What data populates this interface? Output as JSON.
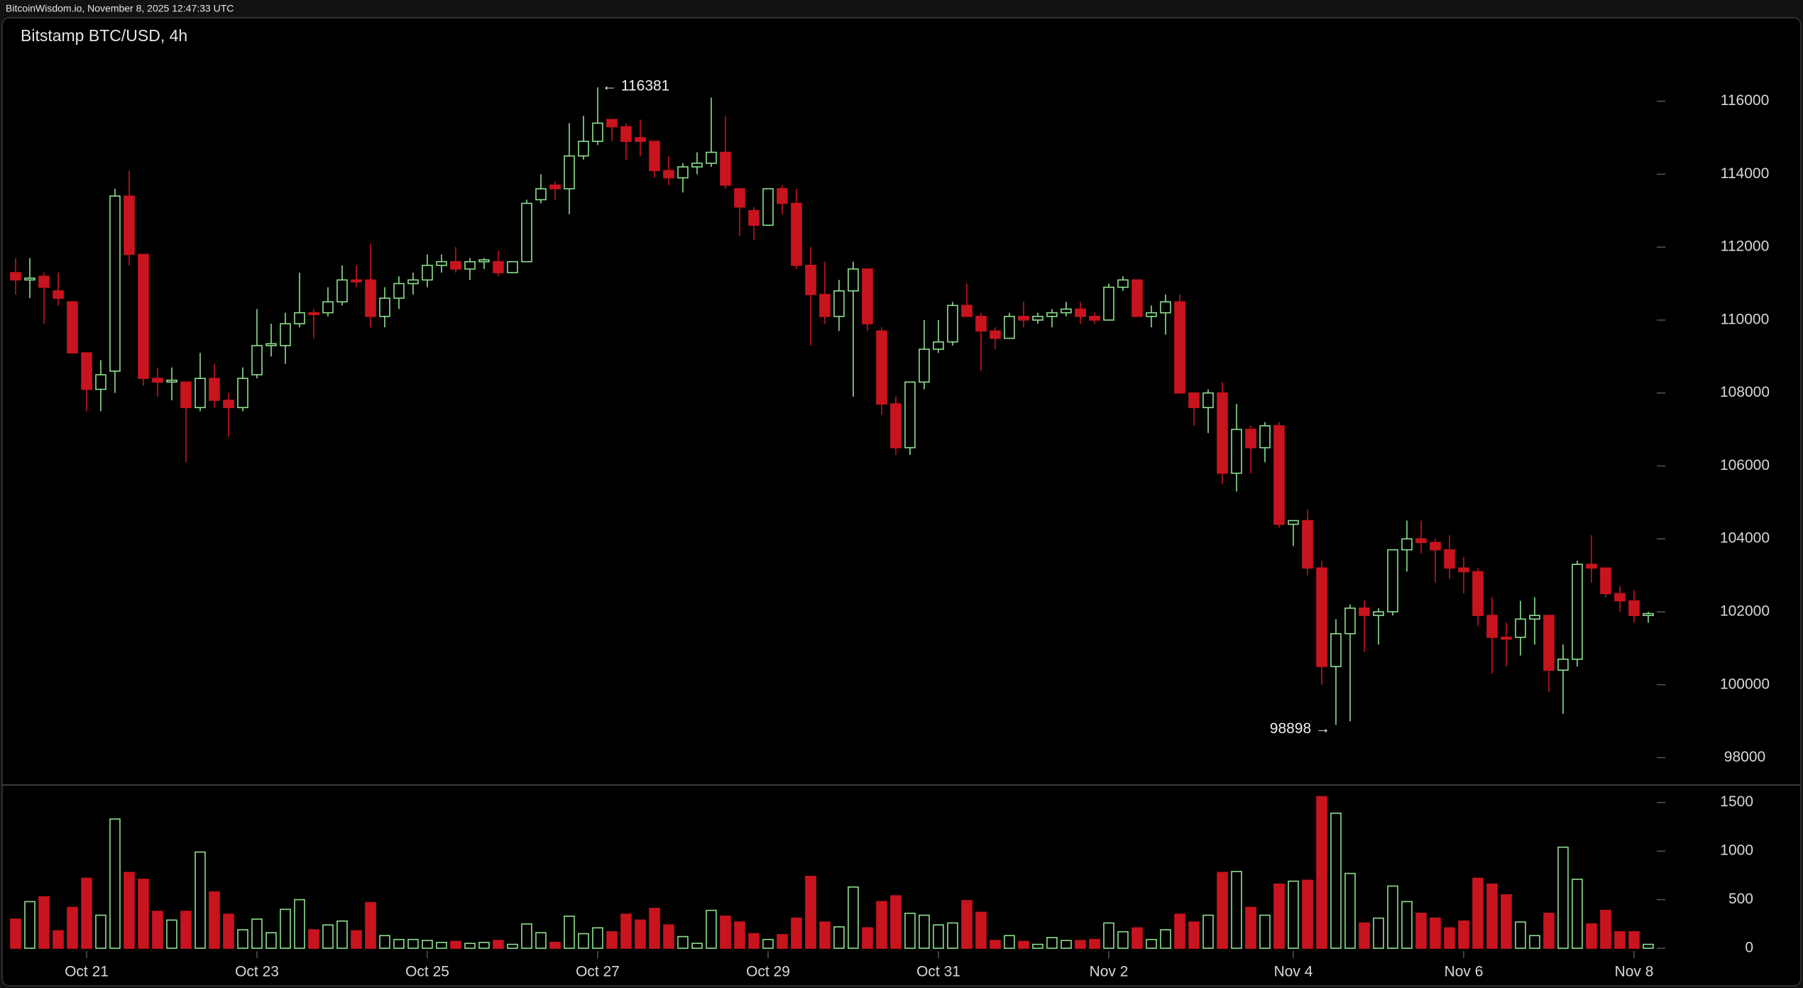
{
  "chart_data": {
    "type": "candlestick",
    "header": "BitcoinWisdom.io, November 8, 2025 12:47:33 UTC",
    "title": "Bitstamp BTC/USD, 4h",
    "up_color": "#8fe08f",
    "down_color": "#c8141e",
    "open": [
      111300,
      111100,
      111200,
      110800,
      110500,
      109100,
      108100,
      108600,
      113400,
      111800,
      108400,
      108300,
      108300,
      107600,
      108400,
      107800,
      107600,
      108500,
      109300,
      109300,
      109900,
      110200,
      110200,
      110500,
      111100,
      111100,
      110100,
      110600,
      111000,
      111100,
      111500,
      111600,
      111400,
      111600,
      111600,
      111300,
      111600,
      113300,
      113700,
      113600,
      114500,
      114900,
      115500,
      115300,
      115000,
      114900,
      114100,
      113900,
      114200,
      114300,
      114600,
      113600,
      113000,
      112600,
      113600,
      113200,
      111500,
      110700,
      110100,
      110800,
      111400,
      109700,
      107700,
      106500,
      108300,
      109200,
      109400,
      110400,
      110100,
      109700,
      109500,
      110100,
      110000,
      110100,
      110200,
      110300,
      110100,
      110000,
      110900,
      111100,
      110100,
      110200,
      110500,
      108000,
      107600,
      108000,
      105800,
      107000,
      106500,
      107100,
      104400,
      104500,
      103200,
      100500,
      101400,
      102100,
      101900,
      102000,
      103700,
      104000,
      103900,
      103700,
      103200,
      103100,
      101900,
      101300,
      101300,
      101800,
      101900,
      100400,
      100700,
      103300,
      103200,
      102500,
      102300,
      101900
    ],
    "high": [
      111700,
      111700,
      111300,
      111300,
      110500,
      109100,
      108900,
      113600,
      114100,
      111800,
      108700,
      108700,
      108300,
      109100,
      108800,
      108000,
      108700,
      110300,
      109900,
      110200,
      111300,
      110300,
      110900,
      111500,
      111500,
      112100,
      110900,
      111200,
      111300,
      111800,
      111800,
      112000,
      111700,
      111700,
      111900,
      111600,
      113300,
      114000,
      113800,
      115400,
      115600,
      116381,
      115500,
      115400,
      115500,
      114900,
      114500,
      114300,
      114600,
      116100,
      115600,
      113600,
      113100,
      113600,
      113700,
      113600,
      112000,
      111600,
      111100,
      111600,
      111400,
      109800,
      107900,
      108300,
      110000,
      110000,
      110500,
      111000,
      110200,
      109800,
      110200,
      110500,
      110200,
      110300,
      110500,
      110500,
      110200,
      111000,
      111200,
      111100,
      110400,
      110700,
      110700,
      108000,
      108100,
      108300,
      107700,
      107100,
      107200,
      107200,
      104500,
      104800,
      103400,
      101800,
      102200,
      102300,
      102100,
      103700,
      104500,
      104500,
      104000,
      104100,
      103500,
      103200,
      102400,
      101700,
      102300,
      102400,
      101900,
      101100,
      103400,
      104100,
      103200,
      102700,
      102600,
      102000
    ],
    "low": [
      110700,
      110600,
      109900,
      110400,
      109100,
      107500,
      107500,
      108000,
      111500,
      108200,
      107900,
      107800,
      106100,
      107500,
      107600,
      106800,
      107500,
      108400,
      109000,
      108800,
      109800,
      109500,
      110100,
      110400,
      110900,
      109800,
      109800,
      110300,
      110700,
      110900,
      111300,
      111300,
      111100,
      111400,
      111200,
      111300,
      111600,
      113200,
      113300,
      112900,
      114400,
      114800,
      114900,
      114400,
      114500,
      113900,
      113700,
      113500,
      114000,
      114200,
      113600,
      112300,
      112200,
      112600,
      112900,
      111400,
      109300,
      109900,
      109700,
      107900,
      109700,
      107400,
      106300,
      106300,
      108100,
      109100,
      109300,
      110100,
      108600,
      109200,
      109500,
      109800,
      109900,
      109800,
      110100,
      109900,
      109900,
      110000,
      110800,
      110100,
      109800,
      109600,
      108000,
      107100,
      106900,
      105500,
      105300,
      105800,
      106100,
      104300,
      103800,
      103000,
      100000,
      98898,
      99000,
      100900,
      101100,
      101900,
      103100,
      103600,
      102800,
      102900,
      102500,
      101600,
      100300,
      100500,
      100800,
      101100,
      99800,
      99200,
      100500,
      102800,
      102400,
      102000,
      101700,
      101700
    ],
    "close": [
      111100,
      111150,
      110900,
      110600,
      109100,
      108100,
      108500,
      113400,
      111800,
      108400,
      108300,
      108350,
      107600,
      108400,
      107800,
      107600,
      108400,
      109300,
      109350,
      109900,
      110200,
      110150,
      110500,
      111100,
      111050,
      110100,
      110600,
      111000,
      111100,
      111500,
      111600,
      111400,
      111600,
      111650,
      111300,
      111600,
      113200,
      113600,
      113600,
      114500,
      114900,
      115400,
      115300,
      114900,
      114900,
      114100,
      113900,
      114200,
      114300,
      114600,
      113700,
      113100,
      112600,
      113600,
      113200,
      111500,
      110700,
      110100,
      110800,
      111400,
      109900,
      107700,
      106500,
      108300,
      109200,
      109400,
      110400,
      110100,
      109700,
      109500,
      110100,
      110000,
      110100,
      110200,
      110300,
      110100,
      110000,
      110900,
      111100,
      110100,
      110200,
      110500,
      108000,
      107600,
      108000,
      105800,
      107000,
      106500,
      107100,
      104400,
      104500,
      103200,
      100500,
      101400,
      102100,
      101900,
      102000,
      103700,
      104000,
      103900,
      103700,
      103200,
      103100,
      101900,
      101300,
      101250,
      101800,
      101900,
      100400,
      100700,
      103300,
      103200,
      102500,
      102300,
      101900,
      101950
    ],
    "volume": [
      300,
      480,
      530,
      180,
      420,
      720,
      340,
      1330,
      780,
      710,
      380,
      290,
      380,
      990,
      580,
      350,
      190,
      300,
      160,
      400,
      500,
      190,
      240,
      280,
      180,
      470,
      130,
      90,
      90,
      80,
      60,
      70,
      50,
      60,
      80,
      40,
      250,
      160,
      60,
      330,
      150,
      210,
      170,
      350,
      290,
      410,
      240,
      120,
      50,
      390,
      330,
      270,
      150,
      90,
      140,
      310,
      740,
      270,
      220,
      630,
      210,
      480,
      540,
      360,
      340,
      240,
      260,
      490,
      370,
      80,
      130,
      70,
      40,
      110,
      80,
      80,
      90,
      260,
      170,
      210,
      90,
      190,
      350,
      270,
      340,
      780,
      790,
      420,
      340,
      660,
      690,
      700,
      1560,
      1390,
      770,
      260,
      310,
      640,
      480,
      360,
      310,
      210,
      280,
      720,
      660,
      550,
      270,
      130,
      360,
      1040,
      710,
      250,
      390,
      170,
      170,
      40
    ],
    "xlim": [
      -1.1,
      115.9
    ],
    "xticks": [
      {
        "value": 5,
        "label": "Oct 21"
      },
      {
        "value": 17,
        "label": "Oct 23"
      },
      {
        "value": 29,
        "label": "Oct 25"
      },
      {
        "value": 41,
        "label": "Oct 27"
      },
      {
        "value": 53,
        "label": "Oct 29"
      },
      {
        "value": 65,
        "label": "Oct 31"
      },
      {
        "value": 77,
        "label": "Nov 2"
      },
      {
        "value": 90,
        "label": "Nov 4"
      },
      {
        "value": 102,
        "label": "Nov 6"
      },
      {
        "value": 114,
        "label": "Nov 8"
      }
    ],
    "ylim": [
      97250,
      118290
    ],
    "yticks": [
      98000,
      100000,
      102000,
      104000,
      106000,
      108000,
      110000,
      112000,
      114000,
      116000
    ],
    "volume_ylim": [
      0,
      1680
    ],
    "volume_yticks": [
      0,
      500,
      1000,
      1500
    ],
    "annotations": [
      {
        "text": "← 116381",
        "value": 116381,
        "at": "high"
      },
      {
        "text": "98898 →",
        "value": 98898,
        "at": "low"
      }
    ]
  }
}
